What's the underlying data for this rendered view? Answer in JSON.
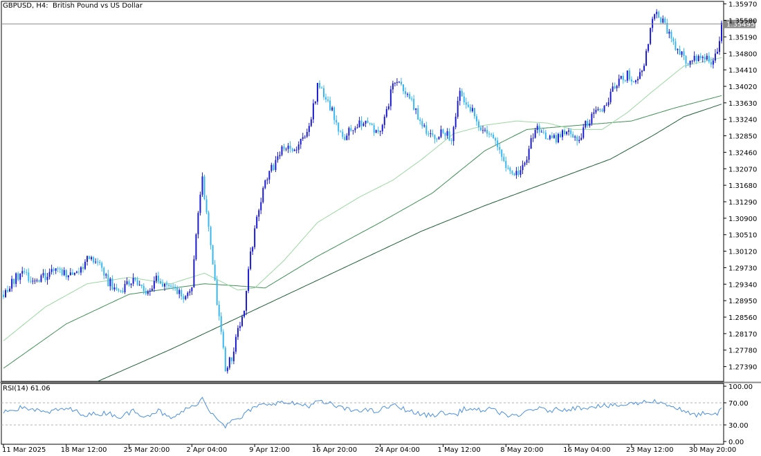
{
  "header": {
    "symbol": "GBPUSD",
    "timeframe": "H4",
    "description": "British Pound vs US Dollar"
  },
  "rsi_panel": {
    "label": "RSI(14) 61.06",
    "levels": [
      "100.00",
      "70.00",
      "30.00",
      "0.00"
    ]
  },
  "colors": {
    "bull": "#1a1ad4",
    "bear": "#36b7f2",
    "ma_fast": "#9ad8a0",
    "ma_mid": "#3f8f55",
    "ma_slow": "#1d5e35",
    "rsi": "#4a8fe0",
    "price_line": "#8a8a8a"
  },
  "price_axis_ticks": [
    "1.35970",
    "1.35580",
    "1.35190",
    "1.34800",
    "1.34410",
    "1.34020",
    "1.33630",
    "1.33240",
    "1.32850",
    "1.32460",
    "1.32070",
    "1.31680",
    "1.31290",
    "1.30900",
    "1.30510",
    "1.30120",
    "1.29730",
    "1.29340",
    "1.28950",
    "1.28560",
    "1.28170",
    "1.27780",
    "1.27390"
  ],
  "current_price": "1.35495",
  "time_axis_labels": [
    "11 Mar 2025",
    "18 Mar 12:00",
    "25 Mar 20:00",
    "2 Apr 04:00",
    "9 Apr 12:00",
    "16 Apr 20:00",
    "24 Apr 04:00",
    "1 May 12:00",
    "8 May 20:00",
    "16 May 04:00",
    "23 May 12:00",
    "30 May 20:00"
  ],
  "chart_data": {
    "type": "candlestick",
    "title": "GBPUSD, H4: British Pound vs US Dollar",
    "ylim": [
      1.2704,
      1.3603
    ],
    "close_path": [
      [
        0,
        1.2915
      ],
      [
        8,
        1.296
      ],
      [
        16,
        1.2935
      ],
      [
        24,
        1.2975
      ],
      [
        32,
        1.295
      ],
      [
        40,
        1.299
      ],
      [
        45,
        1.2985
      ],
      [
        50,
        1.294
      ],
      [
        56,
        1.292
      ],
      [
        62,
        1.295
      ],
      [
        68,
        1.2915
      ],
      [
        74,
        1.295
      ],
      [
        80,
        1.292
      ],
      [
        86,
        1.2905
      ],
      [
        90,
        1.293
      ],
      [
        92,
        1.305
      ],
      [
        95,
        1.318
      ],
      [
        98,
        1.308
      ],
      [
        100,
        1.297
      ],
      [
        103,
        1.286
      ],
      [
        106,
        1.274
      ],
      [
        109,
        1.276
      ],
      [
        112,
        1.283
      ],
      [
        115,
        1.288
      ],
      [
        118,
        1.3
      ],
      [
        121,
        1.31
      ],
      [
        124,
        1.316
      ],
      [
        127,
        1.32
      ],
      [
        130,
        1.322
      ],
      [
        134,
        1.326
      ],
      [
        138,
        1.324
      ],
      [
        142,
        1.328
      ],
      [
        146,
        1.33
      ],
      [
        150,
        1.34
      ],
      [
        154,
        1.338
      ],
      [
        158,
        1.333
      ],
      [
        162,
        1.328
      ],
      [
        166,
        1.33
      ],
      [
        170,
        1.332
      ],
      [
        174,
        1.331
      ],
      [
        178,
        1.329
      ],
      [
        182,
        1.332
      ],
      [
        186,
        1.341
      ],
      [
        190,
        1.34
      ],
      [
        194,
        1.338
      ],
      [
        198,
        1.333
      ],
      [
        202,
        1.329
      ],
      [
        206,
        1.328
      ],
      [
        210,
        1.33
      ],
      [
        214,
        1.327
      ],
      [
        218,
        1.339
      ],
      [
        222,
        1.336
      ],
      [
        226,
        1.332
      ],
      [
        230,
        1.33
      ],
      [
        234,
        1.328
      ],
      [
        238,
        1.324
      ],
      [
        242,
        1.319
      ],
      [
        246,
        1.32
      ],
      [
        250,
        1.324
      ],
      [
        254,
        1.33
      ],
      [
        258,
        1.329
      ],
      [
        262,
        1.327
      ],
      [
        266,
        1.329
      ],
      [
        270,
        1.33
      ],
      [
        274,
        1.327
      ],
      [
        278,
        1.331
      ],
      [
        282,
        1.334
      ],
      [
        286,
        1.335
      ],
      [
        290,
        1.338
      ],
      [
        294,
        1.342
      ],
      [
        298,
        1.343
      ],
      [
        302,
        1.341
      ],
      [
        306,
        1.345
      ],
      [
        308,
        1.351
      ],
      [
        310,
        1.356
      ],
      [
        312,
        1.357
      ],
      [
        315,
        1.3555
      ],
      [
        318,
        1.353
      ],
      [
        322,
        1.349
      ],
      [
        326,
        1.346
      ],
      [
        330,
        1.347
      ],
      [
        334,
        1.348
      ],
      [
        338,
        1.346
      ],
      [
        341,
        1.348
      ],
      [
        343,
        1.355
      ]
    ],
    "ma_fast_path": [
      [
        0,
        1.28
      ],
      [
        20,
        1.288
      ],
      [
        40,
        1.2935
      ],
      [
        60,
        1.295
      ],
      [
        80,
        1.2935
      ],
      [
        96,
        1.296
      ],
      [
        104,
        1.294
      ],
      [
        112,
        1.292
      ],
      [
        120,
        1.2925
      ],
      [
        134,
        1.299
      ],
      [
        150,
        1.308
      ],
      [
        170,
        1.314
      ],
      [
        186,
        1.318
      ],
      [
        200,
        1.323
      ],
      [
        215,
        1.329
      ],
      [
        230,
        1.331
      ],
      [
        245,
        1.332
      ],
      [
        260,
        1.3315
      ],
      [
        272,
        1.33
      ],
      [
        286,
        1.33
      ],
      [
        298,
        1.334
      ],
      [
        310,
        1.339
      ],
      [
        325,
        1.345
      ],
      [
        343,
        1.347
      ]
    ],
    "ma_mid_path": [
      [
        0,
        1.2735
      ],
      [
        30,
        1.284
      ],
      [
        60,
        1.291
      ],
      [
        96,
        1.2935
      ],
      [
        112,
        1.293
      ],
      [
        125,
        1.2925
      ],
      [
        150,
        1.3
      ],
      [
        180,
        1.308
      ],
      [
        205,
        1.315
      ],
      [
        230,
        1.325
      ],
      [
        250,
        1.33
      ],
      [
        275,
        1.331
      ],
      [
        300,
        1.332
      ],
      [
        320,
        1.335
      ],
      [
        343,
        1.338
      ]
    ],
    "ma_slow_path": [
      [
        45,
        1.2704
      ],
      [
        80,
        1.278
      ],
      [
        110,
        1.285
      ],
      [
        140,
        1.292
      ],
      [
        170,
        1.299
      ],
      [
        200,
        1.306
      ],
      [
        230,
        1.312
      ],
      [
        260,
        1.3175
      ],
      [
        290,
        1.323
      ],
      [
        310,
        1.3285
      ],
      [
        325,
        1.333
      ],
      [
        343,
        1.336
      ]
    ],
    "rsi_path": [
      [
        0,
        55
      ],
      [
        10,
        62
      ],
      [
        20,
        52
      ],
      [
        30,
        60
      ],
      [
        40,
        48
      ],
      [
        50,
        52
      ],
      [
        56,
        44
      ],
      [
        62,
        56
      ],
      [
        68,
        46
      ],
      [
        74,
        56
      ],
      [
        80,
        40
      ],
      [
        86,
        56
      ],
      [
        90,
        62
      ],
      [
        95,
        78
      ],
      [
        98,
        58
      ],
      [
        102,
        44
      ],
      [
        106,
        28
      ],
      [
        110,
        38
      ],
      [
        114,
        44
      ],
      [
        118,
        58
      ],
      [
        122,
        64
      ],
      [
        128,
        70
      ],
      [
        134,
        70
      ],
      [
        140,
        68
      ],
      [
        146,
        65
      ],
      [
        150,
        72
      ],
      [
        156,
        68
      ],
      [
        162,
        60
      ],
      [
        166,
        56
      ],
      [
        170,
        58
      ],
      [
        178,
        54
      ],
      [
        186,
        66
      ],
      [
        192,
        58
      ],
      [
        198,
        50
      ],
      [
        204,
        47
      ],
      [
        210,
        52
      ],
      [
        216,
        48
      ],
      [
        220,
        60
      ],
      [
        226,
        56
      ],
      [
        232,
        58
      ],
      [
        238,
        52
      ],
      [
        242,
        46
      ],
      [
        246,
        44
      ],
      [
        250,
        56
      ],
      [
        254,
        60
      ],
      [
        260,
        56
      ],
      [
        266,
        58
      ],
      [
        272,
        60
      ],
      [
        278,
        62
      ],
      [
        284,
        65
      ],
      [
        290,
        64
      ],
      [
        296,
        66
      ],
      [
        300,
        68
      ],
      [
        304,
        70
      ],
      [
        310,
        74
      ],
      [
        314,
        70
      ],
      [
        318,
        66
      ],
      [
        322,
        60
      ],
      [
        326,
        52
      ],
      [
        330,
        48
      ],
      [
        334,
        50
      ],
      [
        338,
        46
      ],
      [
        341,
        50
      ],
      [
        343,
        61.06
      ]
    ],
    "rsi_ylim": [
      0,
      100
    ]
  }
}
